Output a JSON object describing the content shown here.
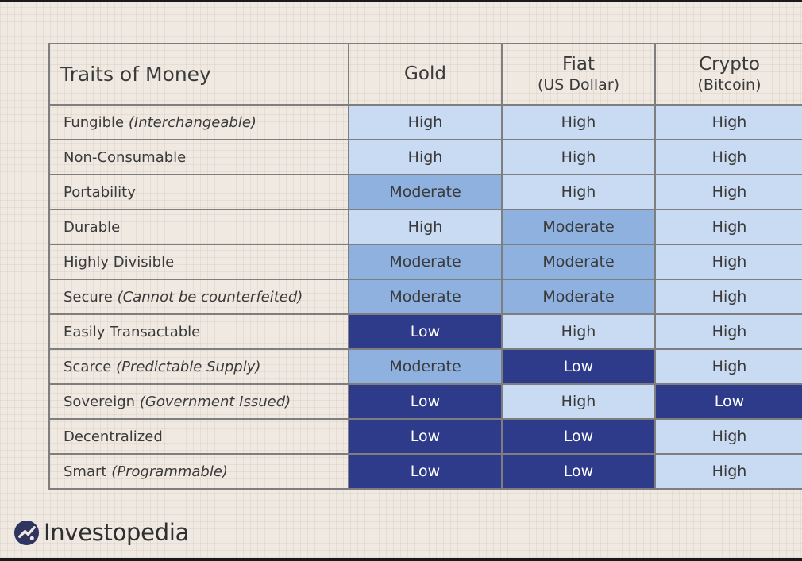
{
  "table": {
    "title": "Traits of Money",
    "columns": [
      {
        "name": "Gold",
        "sub": ""
      },
      {
        "name": "Fiat",
        "sub": "(US Dollar)"
      },
      {
        "name": "Crypto",
        "sub": "(Bitcoin)"
      }
    ],
    "rows": [
      {
        "trait": "Fungible",
        "note": "(Interchangeable)",
        "values": [
          "High",
          "High",
          "High"
        ]
      },
      {
        "trait": "Non-Consumable",
        "note": "",
        "values": [
          "High",
          "High",
          "High"
        ]
      },
      {
        "trait": "Portability",
        "note": "",
        "values": [
          "Moderate",
          "High",
          "High"
        ]
      },
      {
        "trait": "Durable",
        "note": "",
        "values": [
          "High",
          "Moderate",
          "High"
        ]
      },
      {
        "trait": "Highly Divisible",
        "note": "",
        "values": [
          "Moderate",
          "Moderate",
          "High"
        ]
      },
      {
        "trait": "Secure",
        "note": "(Cannot be counterfeited)",
        "values": [
          "Moderate",
          "Moderate",
          "High"
        ]
      },
      {
        "trait": "Easily Transactable",
        "note": "",
        "values": [
          "Low",
          "High",
          "High"
        ]
      },
      {
        "trait": "Scarce",
        "note": "(Predictable Supply)",
        "values": [
          "Moderate",
          "Low",
          "High"
        ]
      },
      {
        "trait": "Sovereign",
        "note": "(Government Issued)",
        "values": [
          "Low",
          "High",
          "Low"
        ]
      },
      {
        "trait": "Decentralized",
        "note": "",
        "values": [
          "Low",
          "Low",
          "High"
        ]
      },
      {
        "trait": "Smart",
        "note": "(Programmable)",
        "values": [
          "Low",
          "Low",
          "High"
        ]
      }
    ]
  },
  "level_colors": {
    "High": "#c9dbf3",
    "Moderate": "#8eb1e0",
    "Low": "#2e3a8a"
  },
  "brand": {
    "name": "Investopedia",
    "icon": "investopedia-logo-icon"
  }
}
